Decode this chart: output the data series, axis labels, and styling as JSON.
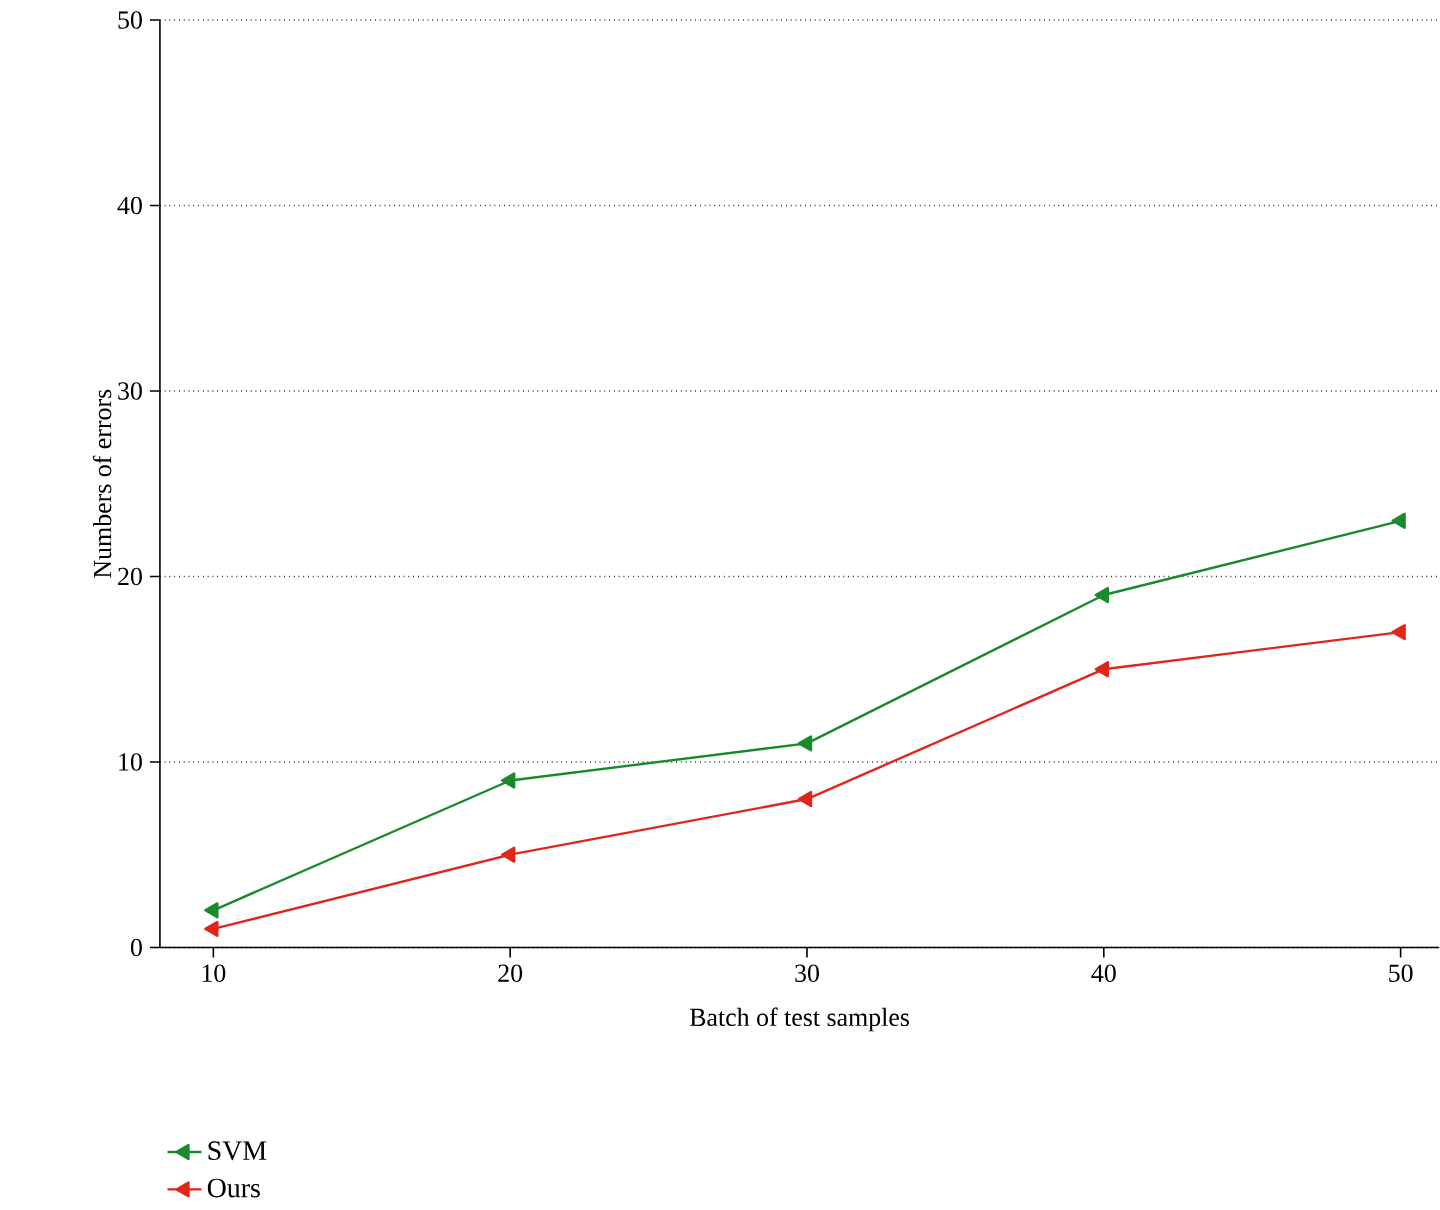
{
  "chart_data": {
    "type": "line",
    "xlabel": "Batch of test samples",
    "ylabel": "Numbers of errors",
    "x": [
      10,
      20,
      30,
      40,
      50
    ],
    "series": [
      {
        "name": "SVM",
        "color": "#1a8a2e",
        "values": [
          2,
          9,
          11,
          19,
          23
        ]
      },
      {
        "name": "Ours",
        "color": "#e0261b",
        "values": [
          1,
          5,
          8,
          15,
          17
        ]
      }
    ],
    "xlim": [
      8.2,
      51.3
    ],
    "ylim": [
      0,
      50
    ],
    "xticks": [
      10,
      20,
      30,
      40,
      50
    ],
    "yticks": [
      0,
      10,
      20,
      30,
      40,
      50
    ],
    "grid": "y",
    "legend": "bottom left",
    "marker": "triangle",
    "line_style": "solid"
  }
}
